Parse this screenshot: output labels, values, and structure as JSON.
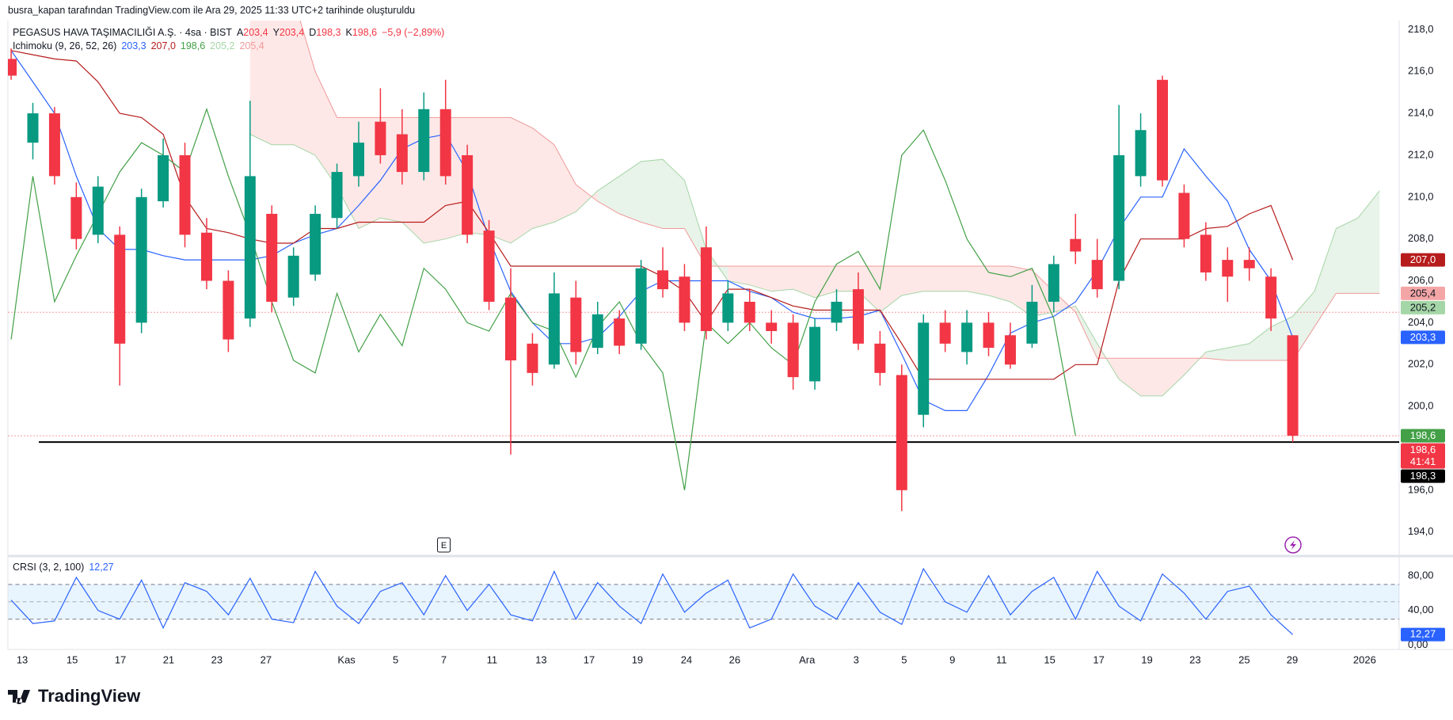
{
  "header": {
    "attribution": "busra_kapan tarafından TradingView.com ile Ara 29, 2025 11:33 UTC+2 tarihinde oluşturuldu"
  },
  "chart_data": [
    {
      "type": "candlestick",
      "symbol": "PEGASUS HAVA TAŞIMACILIĞI A.Ş. · 4sa · BIST",
      "ohlc_legend": [
        {
          "key": "A",
          "value": {
            "value": 203.4,
            "label": "203,4"
          }
        },
        {
          "key": "Y",
          "value": {
            "value": 203.4,
            "label": "203,4"
          }
        },
        {
          "key": "D",
          "value": {
            "value": 198.3,
            "label": "198,3"
          }
        },
        {
          "key": "K",
          "value": {
            "value": 198.6,
            "label": "198,6"
          }
        }
      ],
      "change": "−5,9 (−2,89%)",
      "legend_color": "#f23645",
      "up_color": "#089981",
      "down_color": "#f23645",
      "open": [
        216.6,
        212.6,
        214.0,
        210.0,
        208.2,
        208.2,
        204.0,
        209.8,
        212.0,
        208.3,
        206.0,
        204.2,
        209.2,
        205.2,
        206.3,
        209.0,
        211.0,
        213.6,
        213.0,
        211.2,
        214.2,
        212.0,
        208.4,
        205.2,
        203.0,
        202.0,
        205.2,
        202.8,
        204.2,
        203.0,
        206.5,
        206.2,
        207.6,
        204.0,
        205.0,
        204.0,
        204.0,
        201.2,
        204.0,
        205.6,
        203.0,
        201.5,
        199.6,
        204.0,
        202.6,
        204.0,
        203.4,
        203.0,
        205.0,
        208.0,
        207.0,
        206.0,
        211.0,
        215.6,
        210.2,
        208.2,
        207.0,
        207.0,
        206.2,
        203.4
      ],
      "high": [
        217.1,
        214.5,
        214.3,
        210.7,
        211.0,
        208.6,
        210.4,
        212.8,
        212.6,
        209.0,
        206.5,
        214.6,
        209.6,
        207.6,
        209.6,
        211.6,
        213.6,
        215.2,
        214.2,
        215.0,
        215.6,
        212.5,
        208.9,
        206.6,
        203.5,
        206.4,
        206.0,
        205.0,
        204.6,
        207.0,
        207.6,
        206.8,
        208.6,
        206.0,
        205.6,
        204.6,
        204.4,
        204.2,
        205.6,
        206.4,
        203.6,
        202.0,
        204.4,
        204.6,
        204.6,
        204.5,
        204.0,
        205.8,
        207.2,
        209.2,
        208.0,
        214.4,
        214.0,
        215.8,
        210.6,
        208.8,
        207.6,
        207.6,
        206.6,
        203.4
      ],
      "low": [
        215.6,
        211.8,
        210.6,
        207.5,
        207.8,
        201.0,
        203.5,
        209.5,
        207.6,
        205.6,
        202.6,
        203.8,
        204.5,
        204.8,
        206.0,
        208.5,
        210.5,
        211.6,
        210.6,
        210.8,
        210.6,
        207.8,
        204.6,
        197.7,
        201.0,
        201.8,
        202.0,
        202.5,
        202.5,
        202.7,
        205.2,
        203.6,
        203.2,
        203.6,
        203.6,
        203.0,
        200.8,
        200.8,
        203.6,
        202.7,
        201.0,
        195.0,
        199.0,
        202.6,
        202.0,
        202.4,
        201.8,
        202.8,
        204.5,
        206.8,
        205.2,
        205.6,
        210.5,
        210.5,
        207.6,
        206.0,
        205.0,
        206.0,
        203.6,
        198.3
      ],
      "close": [
        215.8,
        214.0,
        211.0,
        208.0,
        210.5,
        203.0,
        210.0,
        212.0,
        208.2,
        206.0,
        203.2,
        211.0,
        205.0,
        207.2,
        209.2,
        211.2,
        212.6,
        212.0,
        211.2,
        214.2,
        211.0,
        208.2,
        205.0,
        202.2,
        201.6,
        205.4,
        202.6,
        204.4,
        202.9,
        206.6,
        205.6,
        204.0,
        203.6,
        205.4,
        204.0,
        203.6,
        201.4,
        203.8,
        205.0,
        203.0,
        201.6,
        196.0,
        204.0,
        203.0,
        204.0,
        202.8,
        202.0,
        205.0,
        206.8,
        207.4,
        205.6,
        212.0,
        213.2,
        210.8,
        208.0,
        206.4,
        206.2,
        206.6,
        204.2,
        198.6
      ],
      "ichimoku": {
        "name": "Ichimoku (9, 26, 52, 26)",
        "lines": [
          {
            "color": "#2962ff",
            "legend_value": {
              "value": 203.3,
              "label": "203,3"
            },
            "values": [
              217,
              215.5,
              214,
              211,
              208.5,
              207.5,
              207.5,
              207.2,
              207,
              207,
              207,
              207,
              207.2,
              207.8,
              208.2,
              208.5,
              209.6,
              210.8,
              212.3,
              212.8,
              213,
              211.2,
              208,
              205.5,
              204,
              203,
              203,
              203.3,
              204.3,
              205.5,
              206,
              206,
              206,
              206,
              205.5,
              205.2,
              204.5,
              204.2,
              204.2,
              204.3,
              204.6,
              202.5,
              200.3,
              199.8,
              199.8,
              201.5,
              203.5,
              204,
              204.3,
              205,
              206.5,
              208.5,
              210,
              210,
              212.3,
              211,
              209.8,
              207.5,
              206,
              203.3
            ]
          },
          {
            "color": "#b71c1c",
            "legend_value": {
              "value": 207.0,
              "label": "207,0"
            },
            "values": [
              217,
              216.8,
              216.6,
              216.5,
              215.5,
              214,
              213.8,
              213,
              210,
              208.5,
              208.3,
              208,
              207.8,
              207.8,
              208.5,
              208.5,
              208.8,
              208.8,
              208.8,
              208.8,
              209.6,
              209.8,
              208.3,
              206.7,
              206.7,
              206.7,
              206.7,
              206.7,
              206.7,
              206.7,
              206.2,
              205.5,
              204,
              205.6,
              205.6,
              205.2,
              204.8,
              204.6,
              204.6,
              204.6,
              204.6,
              203,
              201.3,
              201.3,
              201.3,
              201.3,
              201.3,
              201.3,
              201.3,
              202,
              202,
              206,
              208,
              208,
              208,
              208.5,
              208.6,
              209.2,
              209.6,
              207
            ]
          },
          {
            "color": "#43a047",
            "legend_value": {
              "value": 198.6,
              "label": "198,6"
            },
            "values": [
              203.2,
              211.0,
              205.0,
              207.2,
              209.2,
              211.2,
              212.6,
              212.0,
              211.2,
              214.2,
              211.0,
              208.2,
              205.0,
              202.2,
              201.6,
              205.4,
              202.6,
              204.4,
              202.9,
              206.6,
              205.6,
              204.0,
              203.6,
              205.4,
              204.0,
              203.6,
              201.4,
              203.8,
              205.0,
              203.0,
              201.6,
              196.0,
              204.0,
              203.0,
              204.0,
              202.8,
              202.0,
              205.0,
              206.8,
              207.4,
              205.6,
              212.0,
              213.2,
              210.8,
              208.0,
              206.4,
              206.2,
              206.6,
              204.2,
              198.6,
              null,
              null,
              null,
              null,
              null,
              null,
              null,
              null,
              null,
              null
            ]
          }
        ],
        "span_a": {
          "color": "#a5d6a7",
          "legend_value": {
            "value": 205.2,
            "label": "205,2"
          },
          "values": [
            null,
            null,
            null,
            null,
            null,
            null,
            null,
            null,
            null,
            null,
            null,
            213,
            212.5,
            212.5,
            212,
            210.5,
            208.5,
            209,
            208.8,
            207.8,
            208,
            208.3,
            208.2,
            207.8,
            208.5,
            208.8,
            209.3,
            210.3,
            211,
            211.7,
            211.8,
            210.8,
            207.5,
            206,
            205.8,
            205.5,
            205.6,
            205.2,
            205.5,
            205.5,
            204.5,
            205.3,
            205.5,
            205.5,
            205.5,
            205.3,
            205,
            204.3,
            204.5,
            204.8,
            203,
            201.3,
            200.5,
            200.5,
            201.5,
            202.6,
            202.8,
            203,
            203.8,
            204.3,
            205.5,
            208.5,
            209,
            210.3
          ]
        },
        "span_b": {
          "color": "#ef9a9a",
          "legend_value": {
            "value": 205.4,
            "label": "205,4"
          },
          "values": [
            null,
            null,
            null,
            null,
            null,
            null,
            null,
            null,
            null,
            null,
            null,
            219.5,
            219.5,
            219.5,
            216,
            213.8,
            213.8,
            213.8,
            213.8,
            213.8,
            213.8,
            213.8,
            213.8,
            213.8,
            213.3,
            212.5,
            210.6,
            209.8,
            209.2,
            208.8,
            208.5,
            208.5,
            206.7,
            206.7,
            206.7,
            206.7,
            206.7,
            206.7,
            206.7,
            206.7,
            206.7,
            206.7,
            206.7,
            206.7,
            206.7,
            206.7,
            206.7,
            206.5,
            205.5,
            204.5,
            202.3,
            202.3,
            202.3,
            202.3,
            202.3,
            202.3,
            202.2,
            202.2,
            202.2,
            202.2,
            203.8,
            205.4,
            205.4,
            205.4
          ]
        },
        "cloud_up_color": "#43a047",
        "cloud_down_color": "#f44336"
      },
      "price_labels": [
        {
          "value": 207.0,
          "label": "207,0",
          "color": "#b71c1c",
          "text_color": "#ffffff"
        },
        {
          "value": 205.4,
          "label": "205,4",
          "color": "#f4a6a6",
          "text_color": "#131722"
        },
        {
          "value": 205.2,
          "label": "205,2",
          "color": "#a5d6a7",
          "text_color": "#131722"
        },
        {
          "value": 203.3,
          "label": "203,3",
          "color": "#2962ff",
          "text_color": "#ffffff"
        },
        {
          "value": 198.6,
          "label": "198,6",
          "color": "#43a047",
          "text_color": "#ffffff"
        },
        {
          "value": 198.6,
          "label": "198,6",
          "color": "#f23645",
          "text_color": "#ffffff",
          "countdown": "41:41"
        },
        {
          "value": 198.3,
          "label": "198,3",
          "color": "#000000",
          "text_color": "#ffffff"
        }
      ],
      "horizontal_line": {
        "value": 198.3,
        "color": "#000000"
      },
      "reference_lines": [
        204.5,
        198.6
      ],
      "reference_color": "#f23645",
      "event_marker": "E",
      "ylim": [
        192.93,
        218.43
      ],
      "yticks": [
        {
          "value": 194,
          "label": "194,0"
        },
        {
          "value": 196,
          "label": "196,0"
        },
        {
          "value": 198,
          "label": "198,0"
        },
        {
          "value": 200,
          "label": "200,0"
        },
        {
          "value": 202,
          "label": "202,0"
        },
        {
          "value": 204,
          "label": "204,0"
        },
        {
          "value": 206,
          "label": "206,0"
        },
        {
          "value": 208,
          "label": "208,0"
        },
        {
          "value": 210,
          "label": "210,0"
        },
        {
          "value": 212,
          "label": "212,0"
        },
        {
          "value": 214,
          "label": "214,0"
        },
        {
          "value": 216,
          "label": "216,0"
        },
        {
          "value": 218,
          "label": "218,0"
        }
      ],
      "xlim": [
        -0.13,
        63.9
      ],
      "xticks": [
        {
          "value": 0.51,
          "label": "13"
        },
        {
          "value": 2.81,
          "label": "15"
        },
        {
          "value": 5.03,
          "label": "17"
        },
        {
          "value": 7.25,
          "label": "21"
        },
        {
          "value": 9.47,
          "label": "23"
        },
        {
          "value": 11.73,
          "label": "27"
        },
        {
          "value": 15.44,
          "label": "Kas"
        },
        {
          "value": 17.7,
          "label": "5"
        },
        {
          "value": 19.92,
          "label": "7"
        },
        {
          "value": 22.14,
          "label": "11"
        },
        {
          "value": 24.4,
          "label": "13"
        },
        {
          "value": 26.61,
          "label": "17"
        },
        {
          "value": 28.83,
          "label": "19"
        },
        {
          "value": 31.09,
          "label": "24"
        },
        {
          "value": 33.31,
          "label": "26"
        },
        {
          "value": 36.64,
          "label": "Ara"
        },
        {
          "value": 38.9,
          "label": "3"
        },
        {
          "value": 41.11,
          "label": "5"
        },
        {
          "value": 43.33,
          "label": "9"
        },
        {
          "value": 45.59,
          "label": "11"
        },
        {
          "value": 47.81,
          "label": "15"
        },
        {
          "value": 50.07,
          "label": "17"
        },
        {
          "value": 52.29,
          "label": "19"
        },
        {
          "value": 54.51,
          "label": "23"
        },
        {
          "value": 56.77,
          "label": "25"
        },
        {
          "value": 58.98,
          "label": "29"
        },
        {
          "value": 62.31,
          "label": "2026"
        }
      ]
    },
    {
      "type": "line",
      "title": "CRSI (3, 2, 100)",
      "color": "#2962ff",
      "current": {
        "value": 12.27,
        "label": "12,27"
      },
      "values": [
        52,
        25,
        28,
        78,
        40,
        30,
        75,
        20,
        72,
        62,
        35,
        77,
        30,
        26,
        85,
        45,
        25,
        62,
        72,
        35,
        80,
        40,
        70,
        35,
        28,
        85,
        30,
        72,
        45,
        25,
        82,
        38,
        60,
        75,
        20,
        30,
        82,
        45,
        30,
        72,
        38,
        24,
        88,
        50,
        38,
        80,
        35,
        62,
        78,
        30,
        85,
        45,
        28,
        82,
        60,
        30,
        62,
        68,
        35,
        12.27
      ],
      "band": [
        30,
        70
      ],
      "midline": 50,
      "band_color": "#2196f3",
      "ylim": [
        -4,
        99
      ],
      "yticks": [
        {
          "value": 0,
          "label": "0,00"
        },
        {
          "value": 40,
          "label": "40,00"
        },
        {
          "value": 80,
          "label": "80,00"
        }
      ]
    }
  ],
  "footer": {
    "logo": "TradingView"
  }
}
